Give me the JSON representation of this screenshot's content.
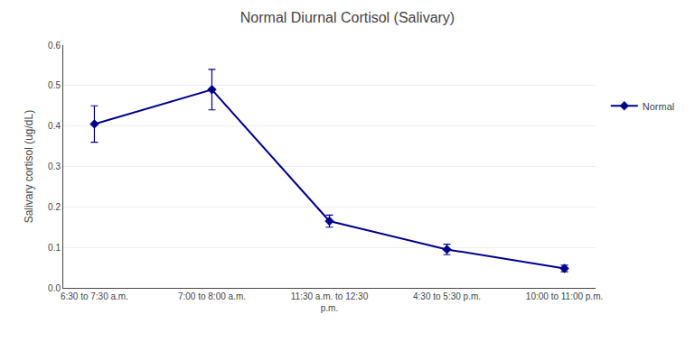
{
  "chart_data": {
    "type": "line",
    "title": "Normal Diurnal Cortisol (Salivary)",
    "ylabel": "Salivary cortisol (ug/dL)",
    "categories": [
      "6:30 to 7:30 a.m.",
      "7:00 to 8:00 a.m.",
      "11:30 a.m. to 12:30\np.m.",
      "4:30 to 5:30 p.m.",
      "10:00 to 11:00 p.m."
    ],
    "series": [
      {
        "name": "Normal",
        "color": "#00008B",
        "marker": "diamond",
        "values": [
          0.405,
          0.49,
          0.165,
          0.095,
          0.048
        ],
        "errors": [
          0.045,
          0.05,
          0.015,
          0.013,
          0.008
        ]
      }
    ],
    "ylim": [
      0,
      0.6
    ],
    "yticks": [
      {
        "value": 0,
        "label": "0.0"
      },
      0.1,
      0.2,
      0.3,
      0.4,
      0.5,
      0.6
    ],
    "grid": true,
    "legend": "right"
  }
}
